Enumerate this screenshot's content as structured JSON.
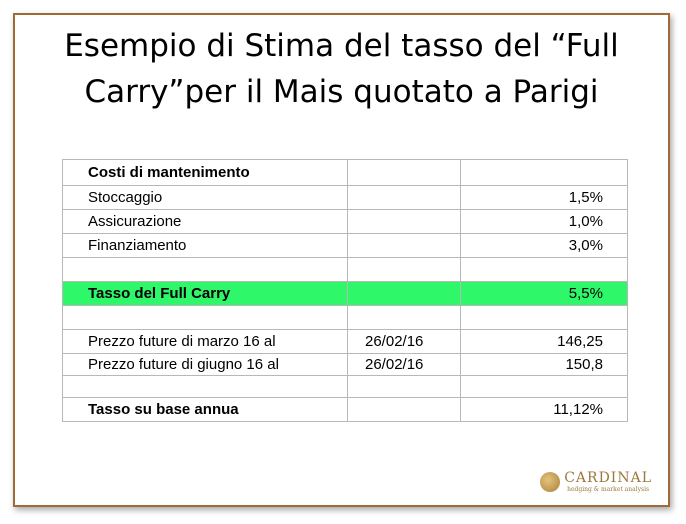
{
  "title": {
    "line1": "Esempio di Stima del tasso del “Full",
    "line2": "Carry”per il Mais quotato a Parigi"
  },
  "table": {
    "header": "Costi di mantenimento",
    "rows": [
      {
        "label": "Stoccaggio",
        "date": "",
        "value": "1,5%"
      },
      {
        "label": "Assicurazione",
        "date": "",
        "value": "1,0%"
      },
      {
        "label": "Finanziamento",
        "date": "",
        "value": "3,0%"
      }
    ],
    "full_carry": {
      "label": "Tasso del Full Carry",
      "value": "5,5%"
    },
    "prices": [
      {
        "label": "Prezzo future di marzo 16 al",
        "date": "26/02/16",
        "value": "146,25"
      },
      {
        "label": "Prezzo future di giugno 16 al",
        "date": "26/02/16",
        "value": "150,8"
      }
    ],
    "annual": {
      "label": "Tasso su base annua",
      "value": "11,12%"
    },
    "highlight_color": "#2ef86a"
  },
  "logo": {
    "name": "CARDINAL",
    "tagline": "hedging & market analysis"
  }
}
